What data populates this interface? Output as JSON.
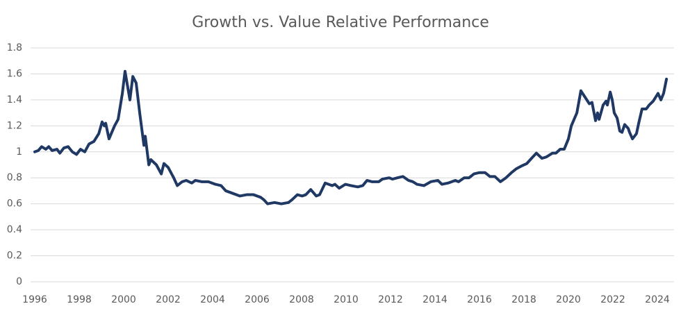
{
  "chart_data": {
    "type": "line",
    "title": "Growth vs. Value Relative Performance",
    "x": [
      1996.0,
      1996.16,
      1996.31,
      1996.5,
      1996.63,
      1996.78,
      1997.0,
      1997.13,
      1997.31,
      1997.5,
      1997.69,
      1997.88,
      1998.06,
      1998.25,
      1998.44,
      1998.66,
      1998.88,
      1999.03,
      1999.13,
      1999.19,
      1999.34,
      1999.59,
      1999.75,
      1999.94,
      2000.06,
      2000.28,
      2000.41,
      2000.56,
      2000.72,
      2000.91,
      2000.97,
      2001.13,
      2001.22,
      2001.47,
      2001.69,
      2001.81,
      2002.0,
      2002.25,
      2002.41,
      2002.63,
      2002.81,
      2003.06,
      2003.22,
      2003.5,
      2003.81,
      2004.13,
      2004.38,
      2004.59,
      2004.91,
      2005.22,
      2005.53,
      2005.84,
      2006.16,
      2006.31,
      2006.47,
      2006.78,
      2007.09,
      2007.41,
      2007.56,
      2007.81,
      2008.03,
      2008.19,
      2008.41,
      2008.66,
      2008.81,
      2009.06,
      2009.38,
      2009.5,
      2009.69,
      2009.97,
      2010.22,
      2010.53,
      2010.75,
      2010.94,
      2011.16,
      2011.47,
      2011.63,
      2011.94,
      2012.09,
      2012.31,
      2012.56,
      2012.81,
      2013.0,
      2013.19,
      2013.5,
      2013.81,
      2014.13,
      2014.31,
      2014.59,
      2014.91,
      2015.06,
      2015.31,
      2015.53,
      2015.75,
      2016.0,
      2016.25,
      2016.47,
      2016.69,
      2016.94,
      2017.19,
      2017.44,
      2017.66,
      2017.88,
      2018.13,
      2018.34,
      2018.56,
      2018.81,
      2019.0,
      2019.28,
      2019.44,
      2019.63,
      2019.81,
      2020.0,
      2020.13,
      2020.38,
      2020.56,
      2020.75,
      2020.94,
      2021.06,
      2021.22,
      2021.31,
      2021.38,
      2021.56,
      2021.69,
      2021.75,
      2021.88,
      2021.97,
      2022.06,
      2022.19,
      2022.31,
      2022.41,
      2022.53,
      2022.69,
      2022.75,
      2022.88,
      2023.06,
      2023.16,
      2023.31,
      2023.5,
      2023.63,
      2023.81,
      2024.03,
      2024.16,
      2024.28,
      2024.41
    ],
    "values": [
      1.0,
      1.01,
      1.04,
      1.02,
      1.04,
      1.01,
      1.02,
      0.99,
      1.03,
      1.04,
      1.0,
      0.98,
      1.02,
      1.0,
      1.06,
      1.08,
      1.14,
      1.23,
      1.2,
      1.22,
      1.1,
      1.2,
      1.25,
      1.45,
      1.62,
      1.4,
      1.58,
      1.53,
      1.3,
      1.05,
      1.12,
      0.9,
      0.94,
      0.9,
      0.83,
      0.91,
      0.88,
      0.8,
      0.74,
      0.77,
      0.78,
      0.76,
      0.78,
      0.77,
      0.77,
      0.75,
      0.74,
      0.7,
      0.68,
      0.66,
      0.67,
      0.67,
      0.65,
      0.63,
      0.6,
      0.61,
      0.6,
      0.61,
      0.63,
      0.67,
      0.66,
      0.67,
      0.71,
      0.66,
      0.67,
      0.76,
      0.74,
      0.75,
      0.72,
      0.75,
      0.74,
      0.73,
      0.74,
      0.78,
      0.77,
      0.77,
      0.79,
      0.8,
      0.79,
      0.8,
      0.81,
      0.78,
      0.77,
      0.75,
      0.74,
      0.77,
      0.78,
      0.75,
      0.76,
      0.78,
      0.77,
      0.8,
      0.8,
      0.83,
      0.84,
      0.84,
      0.81,
      0.81,
      0.77,
      0.8,
      0.84,
      0.87,
      0.89,
      0.91,
      0.95,
      0.99,
      0.95,
      0.96,
      0.99,
      0.99,
      1.02,
      1.02,
      1.1,
      1.2,
      1.3,
      1.47,
      1.42,
      1.37,
      1.38,
      1.24,
      1.3,
      1.25,
      1.36,
      1.39,
      1.36,
      1.46,
      1.4,
      1.3,
      1.26,
      1.16,
      1.15,
      1.21,
      1.18,
      1.15,
      1.1,
      1.14,
      1.22,
      1.33,
      1.33,
      1.36,
      1.39,
      1.45,
      1.4,
      1.45,
      1.56
    ],
    "color": "#1f3864",
    "xlim": [
      1996,
      2024.75
    ],
    "xticks": [
      1996,
      1998,
      2000,
      2002,
      2004,
      2006,
      2008,
      2010,
      2012,
      2014,
      2016,
      2018,
      2020,
      2022,
      2024
    ],
    "ylim": [
      0,
      1.8
    ],
    "yticks": [
      0,
      0.2,
      0.4,
      0.6,
      0.8,
      1,
      1.2,
      1.4,
      1.6,
      1.8
    ],
    "grid": true
  }
}
